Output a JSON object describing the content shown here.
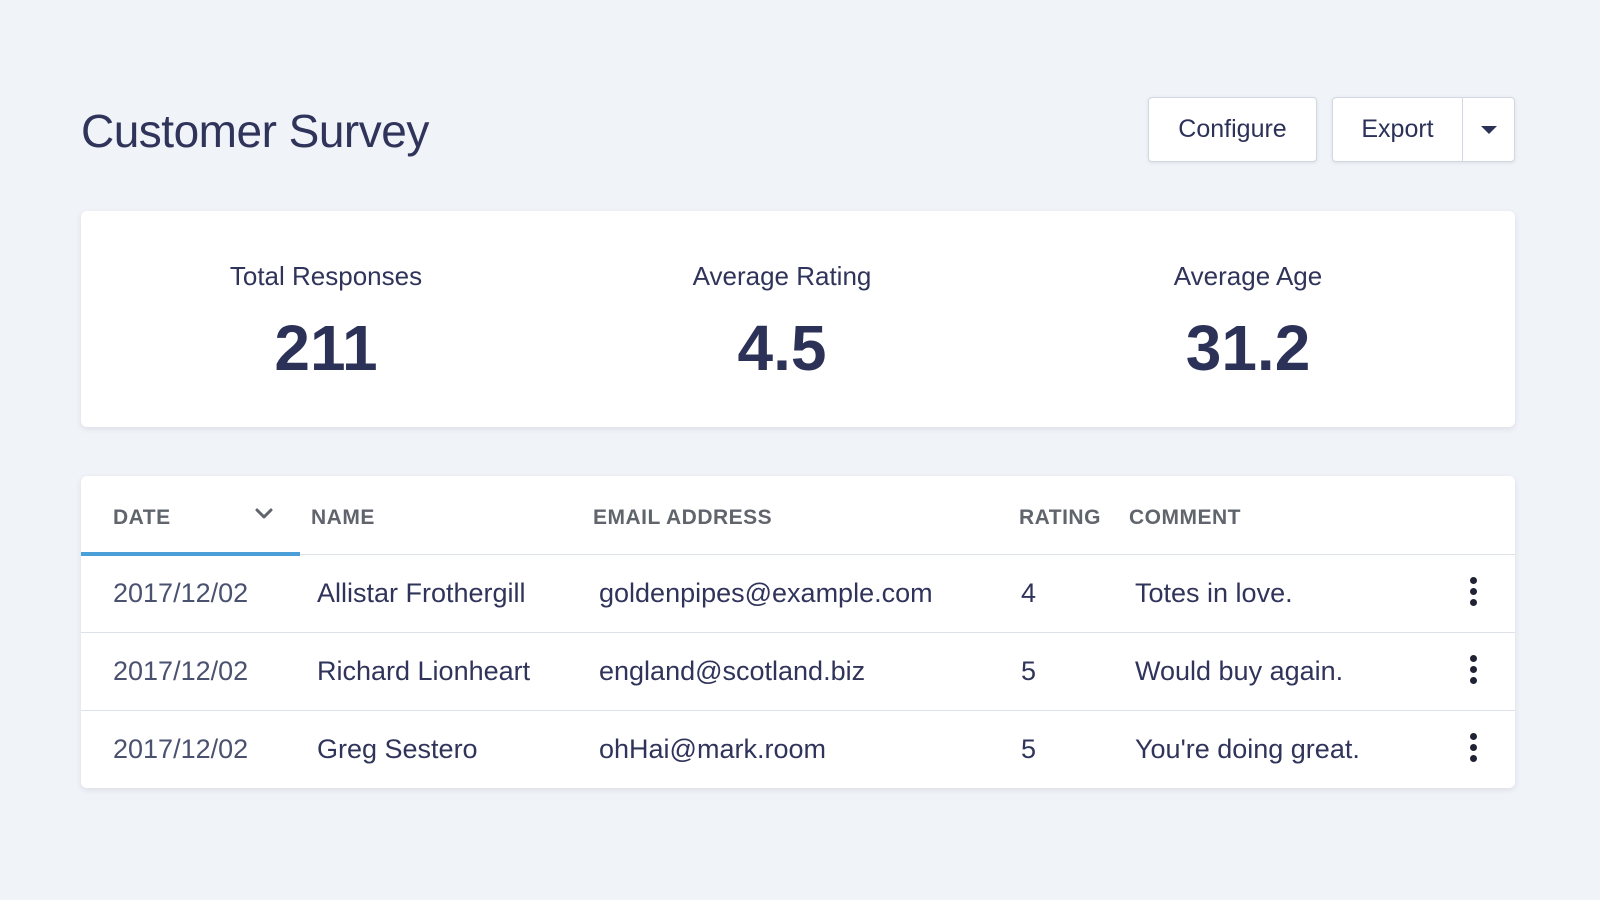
{
  "page": {
    "title": "Customer Survey"
  },
  "toolbar": {
    "configure_label": "Configure",
    "export_label": "Export"
  },
  "stats": [
    {
      "label": "Total Responses",
      "value": "211"
    },
    {
      "label": "Average Rating",
      "value": "4.5"
    },
    {
      "label": "Average Age",
      "value": "31.2"
    }
  ],
  "table": {
    "headers": {
      "date": "DATE",
      "name": "NAME",
      "email": "EMAIL ADDRESS",
      "rating": "RATING",
      "comment": "COMMENT"
    },
    "sorted_column": "date",
    "rows": [
      {
        "date": "2017/12/02",
        "name": "Allistar Frothergill",
        "email": "goldenpipes@example.com",
        "rating": "4",
        "comment": "Totes in love."
      },
      {
        "date": "2017/12/02",
        "name": "Richard Lionheart",
        "email": "england@scotland.biz",
        "rating": "5",
        "comment": "Would buy again."
      },
      {
        "date": "2017/12/02",
        "name": "Greg Sestero",
        "email": "ohHai@mark.room",
        "rating": "5",
        "comment": "You're doing great."
      }
    ]
  },
  "colors": {
    "background": "#f0f3f8",
    "accent": "#4a9fd8",
    "text": "#2c3158"
  },
  "icons": {
    "export_dropdown": "caret-down-icon",
    "sort": "chevron-down-icon",
    "row_menu": "more-vertical-icon"
  }
}
